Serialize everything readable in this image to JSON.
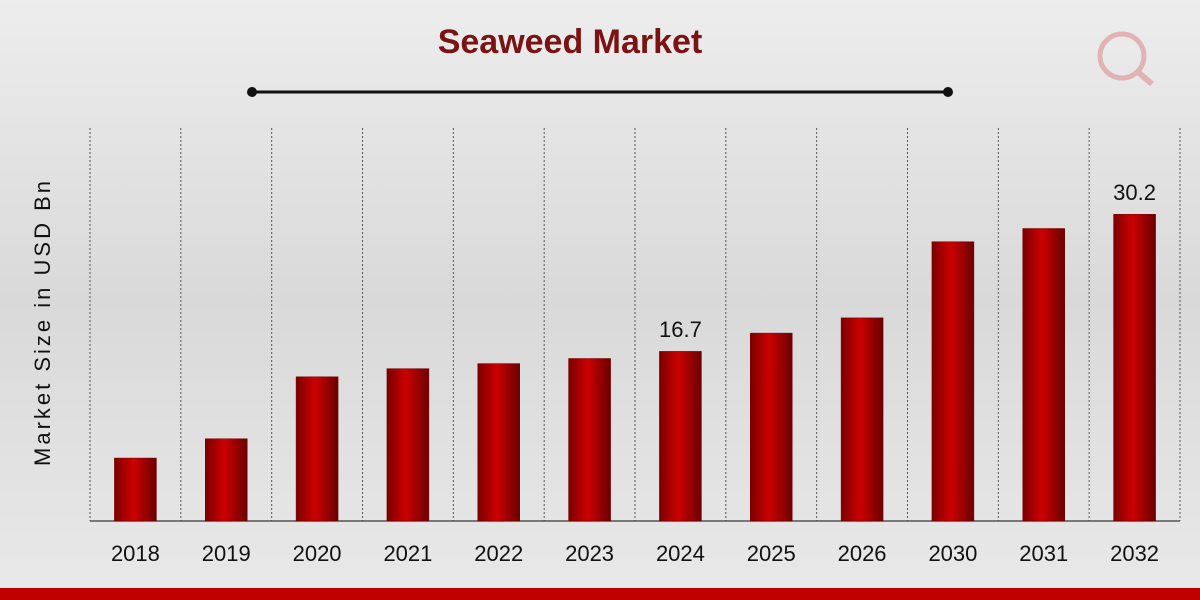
{
  "chart_data": {
    "type": "bar",
    "title": "Seaweed Market",
    "y_label": "Market Size in USD Bn",
    "categories": [
      "2018",
      "2019",
      "2020",
      "2021",
      "2022",
      "2023",
      "2024",
      "2025",
      "2026",
      "2030",
      "2031",
      "2032"
    ],
    "values": [
      6.2,
      8.1,
      14.2,
      15.0,
      15.5,
      16.0,
      16.7,
      18.5,
      20.0,
      27.5,
      28.8,
      30.2
    ],
    "value_labels": [
      null,
      null,
      null,
      null,
      null,
      null,
      "16.7",
      null,
      null,
      null,
      null,
      "30.2"
    ],
    "color": "#cc0000",
    "ylim": [
      0,
      32
    ]
  }
}
